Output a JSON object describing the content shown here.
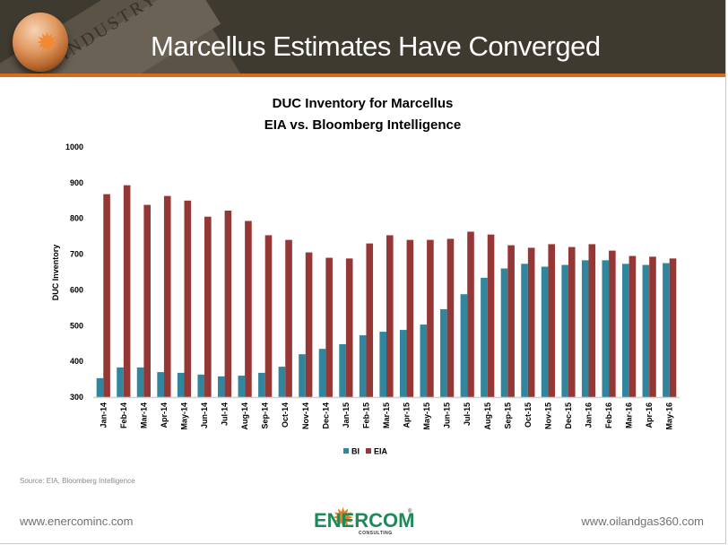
{
  "slide": {
    "title": "Marcellus Estimates Have Converged",
    "header_watermark": "INDUSTRY",
    "source": "Source: EIA, Bloomberg Intelligence",
    "footer_left": "www.enercominc.com",
    "footer_right": "www.oilandgas360.com",
    "logo": {
      "name": "ENERCOM",
      "sub": "CONSULTING",
      "reg": "®"
    }
  },
  "colors": {
    "header_bg": "#3f3a30",
    "stripe": "#d86a1f",
    "bi": "#31859c",
    "eia": "#953735"
  },
  "chart_data": {
    "type": "bar",
    "title": "DUC Inventory for Marcellus",
    "subtitle": "EIA vs. Bloomberg Intelligence",
    "xlabel": "",
    "ylabel": "DUC Inventory",
    "ylim": [
      300,
      1000
    ],
    "yticks": [
      300,
      400,
      500,
      600,
      700,
      800,
      900,
      1000
    ],
    "grid": false,
    "legend_position": "bottom",
    "categories": [
      "Jan-14",
      "Feb-14",
      "Mar-14",
      "Apr-14",
      "May-14",
      "Jun-14",
      "Jul-14",
      "Aug-14",
      "Sep-14",
      "Oct-14",
      "Nov-14",
      "Dec-14",
      "Jan-15",
      "Feb-15",
      "Mar-15",
      "Apr-15",
      "May-15",
      "Jun-15",
      "Jul-15",
      "Aug-15",
      "Sep-15",
      "Oct-15",
      "Nov-15",
      "Dec-15",
      "Jan-16",
      "Feb-16",
      "Mar-16",
      "Apr-16",
      "May-16"
    ],
    "series": [
      {
        "name": "BI",
        "color": "#31859c",
        "values": [
          353,
          383,
          383,
          370,
          368,
          363,
          358,
          360,
          368,
          385,
          420,
          435,
          448,
          473,
          483,
          488,
          503,
          546,
          588,
          634,
          660,
          673,
          665,
          670,
          683,
          683,
          673,
          670,
          675
        ]
      },
      {
        "name": "EIA",
        "color": "#953735",
        "values": [
          868,
          893,
          838,
          863,
          850,
          805,
          822,
          793,
          753,
          740,
          705,
          690,
          688,
          730,
          753,
          740,
          740,
          743,
          763,
          755,
          725,
          718,
          728,
          720,
          728,
          710,
          695,
          693,
          688
        ]
      }
    ]
  }
}
